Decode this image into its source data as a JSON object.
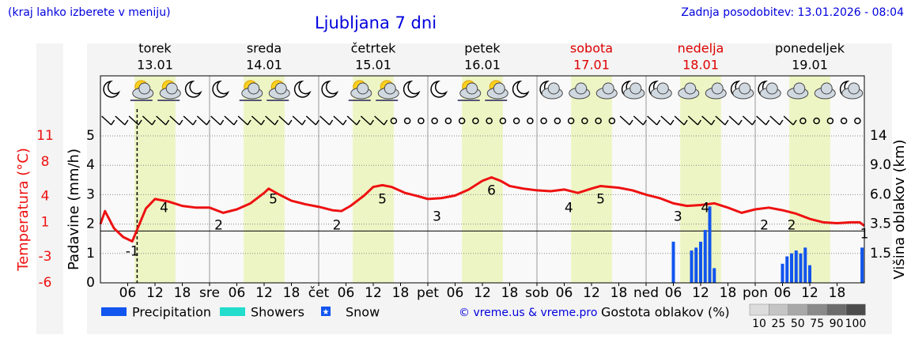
{
  "chart_data": {
    "type": "meteogram",
    "title": "Ljubljana 7 dni",
    "note": "(kraj lahko izberete v meniju)",
    "updated": "Zadnja posodobitev: 13.01.2026 - 08:04",
    "credit": "© vreme.us & vreme.pro",
    "days": [
      {
        "name": "torek",
        "date": "13.01",
        "color": "#000000"
      },
      {
        "name": "sreda",
        "date": "14.01",
        "color": "#000000"
      },
      {
        "name": "četrtek",
        "date": "15.01",
        "color": "#000000"
      },
      {
        "name": "petek",
        "date": "16.01",
        "color": "#000000"
      },
      {
        "name": "sobota",
        "date": "17.01",
        "color": "#dd0000"
      },
      {
        "name": "nedelja",
        "date": "18.01",
        "color": "#dd0000"
      },
      {
        "name": "ponedeljek",
        "date": "19.01",
        "color": "#000000"
      }
    ],
    "xlim": [
      0,
      168
    ],
    "xticks": [
      {
        "value": 6,
        "label": "06"
      },
      {
        "value": 12,
        "label": "12"
      },
      {
        "value": 18,
        "label": "18"
      },
      {
        "value": 24,
        "label": "sre"
      },
      {
        "value": 30,
        "label": "06"
      },
      {
        "value": 36,
        "label": "12"
      },
      {
        "value": 42,
        "label": "18"
      },
      {
        "value": 48,
        "label": "čet"
      },
      {
        "value": 54,
        "label": "06"
      },
      {
        "value": 60,
        "label": "12"
      },
      {
        "value": 66,
        "label": "18"
      },
      {
        "value": 72,
        "label": "pet"
      },
      {
        "value": 78,
        "label": "06"
      },
      {
        "value": 84,
        "label": "12"
      },
      {
        "value": 90,
        "label": "18"
      },
      {
        "value": 96,
        "label": "sob"
      },
      {
        "value": 102,
        "label": "06"
      },
      {
        "value": 108,
        "label": "12"
      },
      {
        "value": 114,
        "label": "18"
      },
      {
        "value": 120,
        "label": "ned"
      },
      {
        "value": 126,
        "label": "06"
      },
      {
        "value": 132,
        "label": "12"
      },
      {
        "value": 138,
        "label": "18"
      },
      {
        "value": 144,
        "label": "pon"
      },
      {
        "value": 150,
        "label": "06"
      },
      {
        "value": 156,
        "label": "12"
      },
      {
        "value": 162,
        "label": "18"
      }
    ],
    "now": 8.07,
    "daylight_hours": [
      7.5,
      16.5
    ],
    "ylabel": "Padavine (mm/h)",
    "ylim": [
      0,
      5
    ],
    "yticks": [
      0,
      1,
      2,
      3,
      4,
      5
    ],
    "y2label": "Temperatura (°C)",
    "y2lim": [
      -6,
      11
    ],
    "y2ticks": [
      11,
      8,
      4,
      1,
      -3,
      -6
    ],
    "y3label": "Višina oblakov (km)",
    "y3ticks": [
      1.5,
      3.5,
      {
        "value": 6,
        "label": "6.0"
      },
      {
        "value": 9,
        "label": "9.0"
      },
      14
    ],
    "grid": true,
    "series": [
      {
        "axis": "y2",
        "type": "line",
        "color": "#ee1111",
        "x": [
          0,
          1,
          3,
          5,
          7,
          10,
          12,
          15,
          18,
          21,
          24,
          27,
          30,
          33,
          36,
          37,
          39,
          42,
          45,
          48,
          51,
          53,
          55,
          58,
          60,
          62,
          64,
          67,
          70,
          72,
          75,
          78,
          81,
          84,
          86,
          88,
          90,
          93,
          96,
          99,
          102,
          105,
          108,
          110,
          114,
          117,
          120,
          123,
          126,
          129,
          132,
          135,
          138,
          141,
          144,
          147,
          150,
          153,
          156,
          159,
          162,
          165,
          167,
          168
        ],
        "values": [
          0.8,
          2.3,
          0.3,
          -0.7,
          -1.2,
          2.6,
          3.7,
          3.4,
          2.9,
          2.7,
          2.7,
          2.1,
          2.5,
          3.2,
          4.4,
          4.9,
          4.3,
          3.5,
          3.1,
          2.8,
          2.4,
          2.3,
          2.9,
          4.1,
          5.1,
          5.3,
          5.1,
          4.4,
          4.0,
          3.7,
          3.8,
          4.1,
          4.8,
          5.8,
          6.2,
          5.8,
          5.2,
          4.9,
          4.7,
          4.6,
          4.8,
          4.4,
          4.9,
          5.2,
          5.0,
          4.7,
          4.2,
          3.8,
          3.2,
          2.9,
          3.0,
          3.2,
          2.7,
          2.1,
          2.5,
          2.7,
          2.4,
          2.0,
          1.4,
          1.0,
          0.9,
          1.0,
          1.0,
          0.6
        ]
      },
      {
        "name": "Precipitation",
        "type": "bar",
        "color": "#1155ee",
        "x": [
          126,
          130,
          131,
          132,
          133,
          134,
          135,
          150,
          151,
          152,
          153,
          154,
          155,
          156,
          167.5
        ],
        "values": [
          1.4,
          1.1,
          1.2,
          1.4,
          1.8,
          2.6,
          0.5,
          0.65,
          0.9,
          1.0,
          1.1,
          1.0,
          1.2,
          0.6,
          1.2
        ]
      },
      {
        "name": "Showers",
        "type": "bar",
        "color": "#22ddcc",
        "x": [],
        "values": []
      },
      {
        "name": "Snow",
        "type": "snow",
        "color": "#1155ee",
        "x": [],
        "values": []
      }
    ],
    "temp_labels": {
      "x": [
        7,
        14,
        26,
        38,
        52,
        62,
        74,
        86,
        103,
        110,
        127,
        133,
        146,
        152,
        168
      ],
      "values": [
        -1,
        4,
        2,
        5,
        2,
        5,
        3,
        6,
        4,
        5,
        3,
        4,
        2,
        2,
        1
      ]
    },
    "cloud_density": {
      "label": "Gostota oblakov (%)",
      "levels": [
        10,
        25,
        50,
        75,
        90,
        100
      ],
      "colors": [
        "#dcdcdc",
        "#c4c4c4",
        "#a8a8a8",
        "#8a8a8a",
        "#6c6c6c",
        "#4c4c4c"
      ]
    }
  }
}
